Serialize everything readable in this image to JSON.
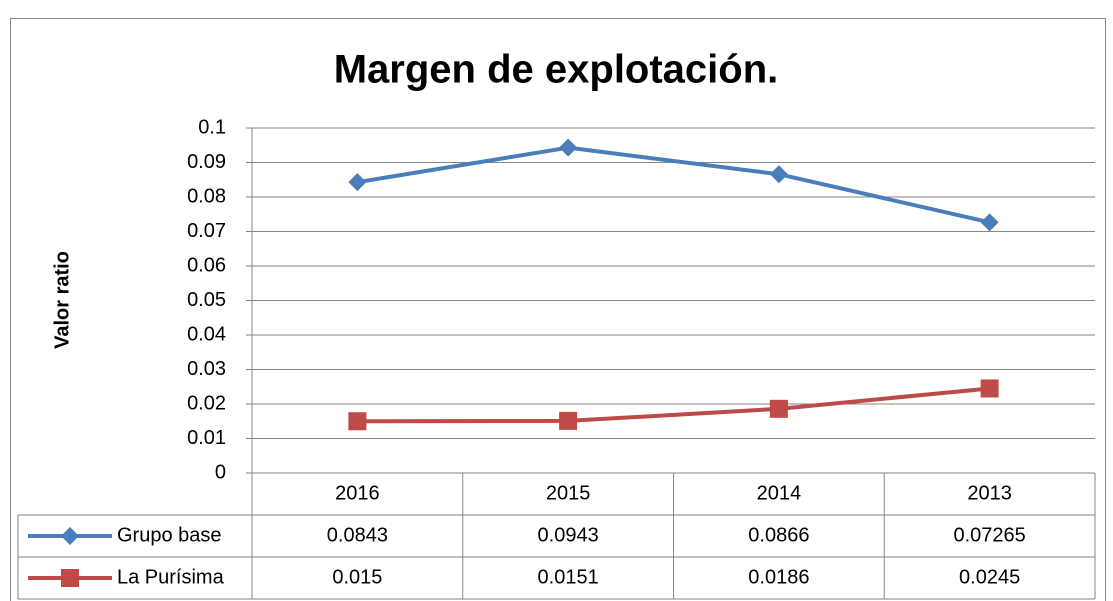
{
  "chart_data": {
    "type": "line",
    "title": "Margen de explotación.",
    "y_label": "Valor ratio",
    "categories": [
      "2016",
      "2015",
      "2014",
      "2013"
    ],
    "series": [
      {
        "name": "Grupo base",
        "color": "#4a7ebb",
        "marker": "diamond",
        "values": [
          0.0843,
          0.0943,
          0.0866,
          0.07265
        ]
      },
      {
        "name": "La Purísima",
        "color": "#be4b48",
        "marker": "square",
        "values": [
          0.015,
          0.0151,
          0.0186,
          0.0245
        ]
      }
    ],
    "ylim": [
      0,
      0.1
    ],
    "yticks": [
      0,
      0.01,
      0.02,
      0.03,
      0.04,
      0.05,
      0.06,
      0.07,
      0.08,
      0.09,
      0.1
    ],
    "grid": true,
    "data_table": true
  }
}
